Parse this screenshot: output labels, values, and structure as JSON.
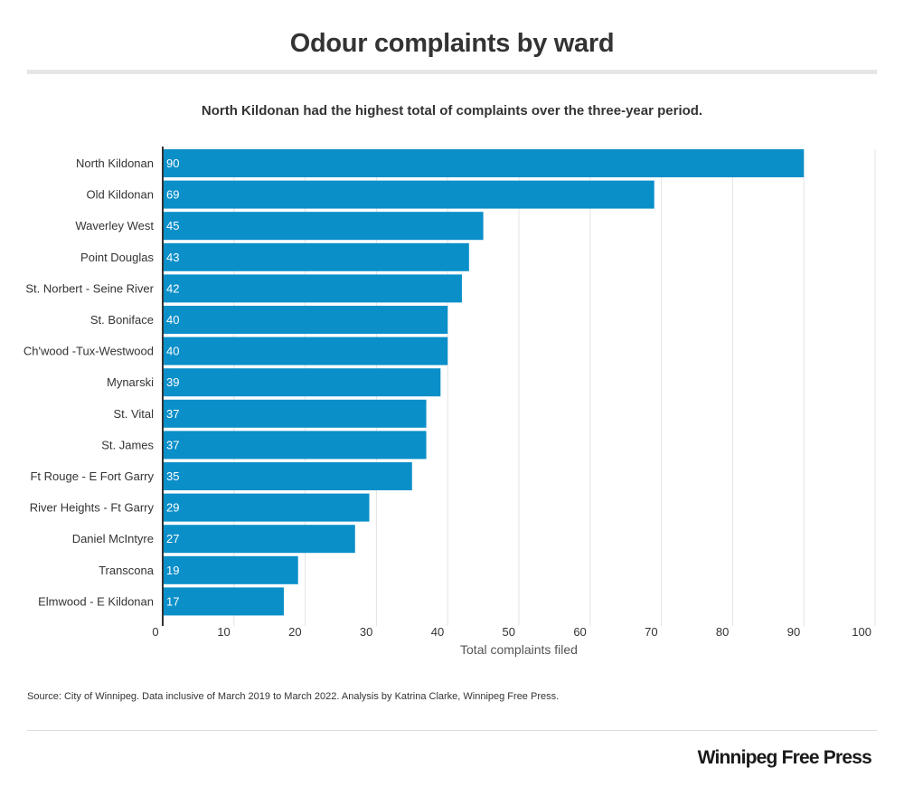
{
  "title": "Odour complaints by ward",
  "subtitle": "North Kildonan had the highest total of complaints over the three-year period.",
  "source": "Source: City of Winnipeg. Data inclusive of March 2019 to March 2022. Analysis by Katrina Clarke, Winnipeg Free Press.",
  "brand": "Winnipeg Free Press",
  "chart_data": {
    "type": "bar",
    "orientation": "horizontal",
    "categories": [
      "North Kildonan",
      "Old Kildonan",
      "Waverley West",
      "Point Douglas",
      "St. Norbert - Seine River",
      "St. Boniface",
      "Ch'wood -Tux-Westwood",
      "Mynarski",
      "St. Vital",
      "St. James",
      "Ft Rouge - E Fort Garry",
      "River Heights - Ft Garry",
      "Daniel McIntyre",
      "Transcona",
      "Elmwood - E Kildonan"
    ],
    "values": [
      90,
      69,
      45,
      43,
      42,
      40,
      40,
      39,
      37,
      37,
      35,
      29,
      27,
      19,
      17
    ],
    "xlabel": "Total complaints filed",
    "ylabel": "",
    "xlim": [
      0,
      100
    ],
    "xticks": [
      0,
      10,
      20,
      30,
      40,
      50,
      60,
      70,
      80,
      90,
      100
    ],
    "grid": "vertical",
    "data_labels": "inside-left",
    "bar_color": "#0a8fc9",
    "label_color": "#ffffff"
  }
}
